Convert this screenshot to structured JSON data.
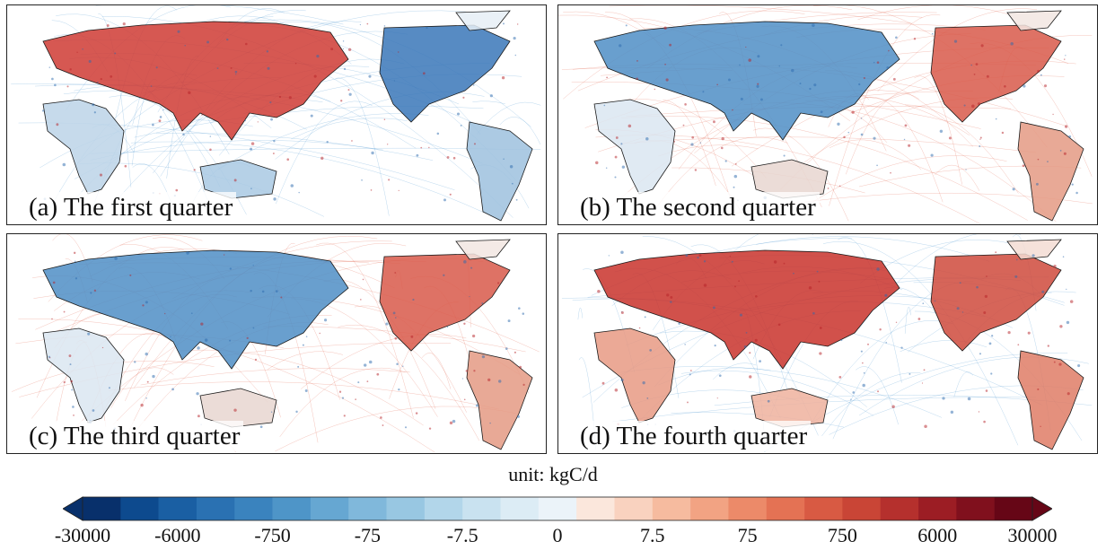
{
  "panels": [
    {
      "label": "(a) The first quarter",
      "ocean_tint": "#3f8fcf",
      "land_scheme": "mixed_red_north"
    },
    {
      "label": "(b) The second quarter",
      "ocean_tint": "#e0553c",
      "land_scheme": "blue_eurasia_red_us"
    },
    {
      "label": "(c) The third quarter",
      "ocean_tint": "#e0553c",
      "land_scheme": "blue_eurasia_red_us"
    },
    {
      "label": "(d) The fourth quarter",
      "ocean_tint": "#3f8fcf",
      "land_scheme": "red_all"
    }
  ],
  "unit_label": "unit: kgC/d",
  "colorbar": {
    "ticks": [
      "-30000",
      "-6000",
      "-750",
      "-75",
      "-7.5",
      "0",
      "7.5",
      "75",
      "750",
      "6000",
      "30000"
    ],
    "colors": [
      "#08306b",
      "#0d4a8e",
      "#1a5fa3",
      "#2a71b2",
      "#3a83be",
      "#4e95c8",
      "#66a7d2",
      "#80b8db",
      "#98c7e2",
      "#b2d6ea",
      "#c9e2f0",
      "#dcecf5",
      "#ebf3f9",
      "#fbe7dc",
      "#f9d2bf",
      "#f6bb9f",
      "#f2a383",
      "#ec8a69",
      "#e47254",
      "#d85a43",
      "#c94536",
      "#b5302d",
      "#9c1d24",
      "#80101d",
      "#660616"
    ]
  },
  "colors": {
    "coast": "#1a1a1a",
    "border": "#444444"
  }
}
